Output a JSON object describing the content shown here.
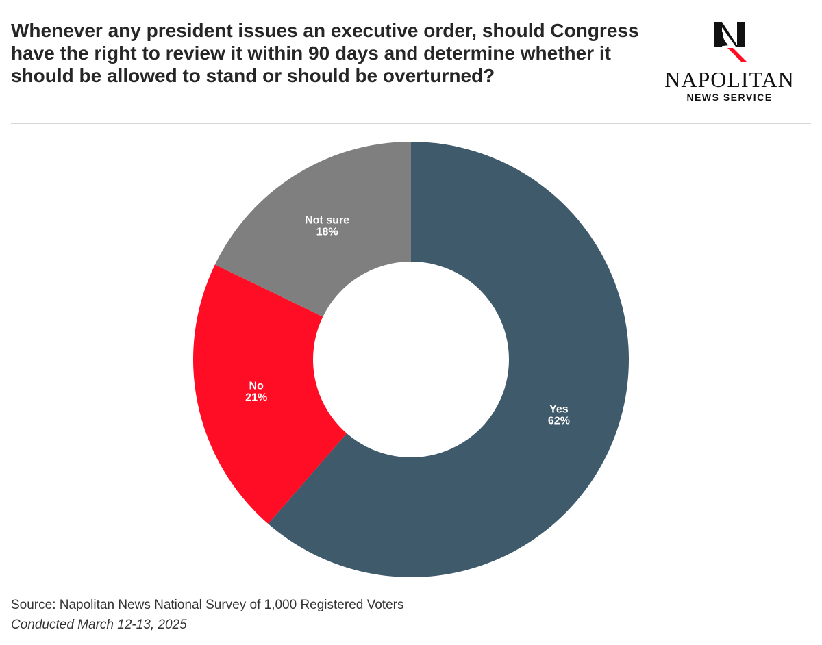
{
  "header": {
    "title": "Whenever any president issues an executive order, should Congress have the right to review it within 90 days and determine whether it should be allowed to stand or should be overturned?"
  },
  "logo": {
    "wordmark": "NAPOLITAN",
    "subword": "NEWS SERVICE"
  },
  "chart_data": {
    "type": "pie",
    "donut": true,
    "start_angle_deg": 0,
    "direction": "clockwise",
    "legend": "none",
    "slices": [
      {
        "label": "Yes",
        "value": 62,
        "value_label": "62%",
        "color": "#3f5a6b"
      },
      {
        "label": "No",
        "value": 21,
        "value_label": "21%",
        "color": "#ff0d24"
      },
      {
        "label": "Not sure",
        "value": 18,
        "value_label": "18%",
        "color": "#7f7f7f"
      }
    ]
  },
  "footer": {
    "source": "Source: Napolitan News National Survey of 1,000 Registered Voters",
    "conducted": "Conducted March 12-13, 2025"
  }
}
